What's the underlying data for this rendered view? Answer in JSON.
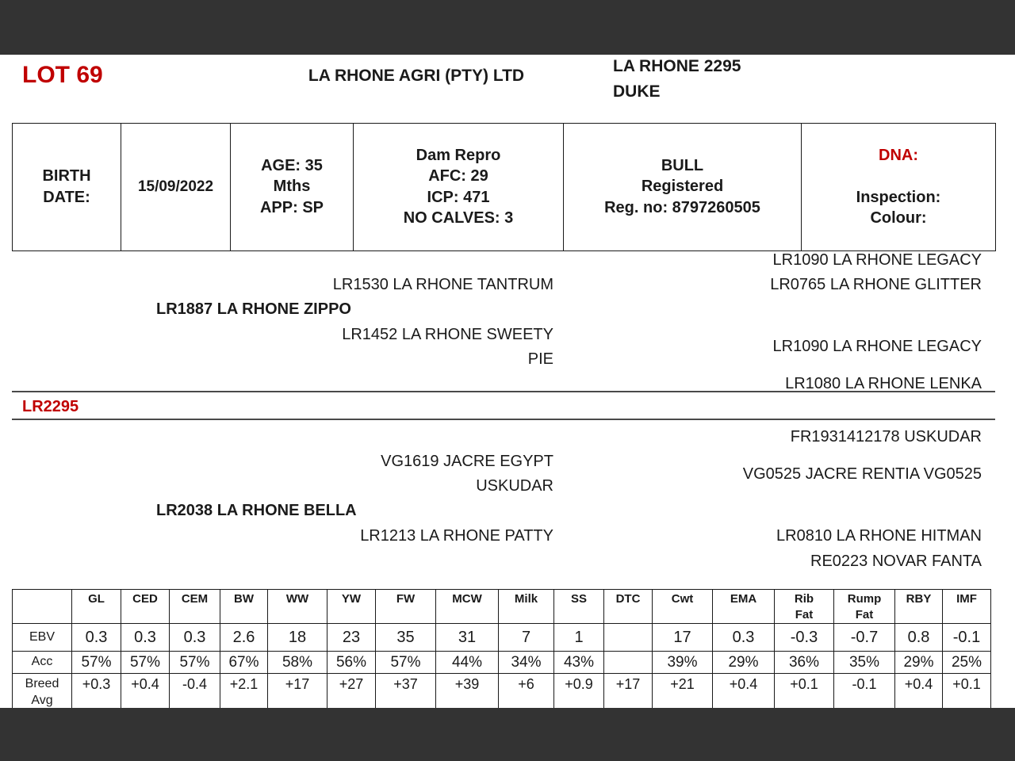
{
  "header": {
    "lot_label": "LOT 69",
    "farm_name": "LA RHONE AGRI (PTY) LTD",
    "animal_name": "LA RHONE 2295\nDUKE"
  },
  "info_table": {
    "birth_date_label": "BIRTH\nDATE:",
    "birth_date_value": "15/09/2022",
    "age_app": "AGE: 35\nMths\nAPP: SP",
    "dam_repro": "Dam Repro\nAFC: 29\nICP: 471\nNO CALVES: 3",
    "registration": "BULL\nRegistered\nReg. no: 8797260505",
    "dna_label": "DNA:",
    "dna_details": "Inspection:\nColour:"
  },
  "pedigree": {
    "animal_id": "LR2295",
    "sire": "LR1887 LA RHONE ZIPPO",
    "dam": "LR2038 LA RHONE BELLA",
    "paternal_grandsire": "LR1530 LA RHONE TANTRUM",
    "paternal_granddam": "LR1452 LA RHONE SWEETY\nPIE",
    "maternal_grandsire": "VG1619 JACRE EGYPT\nUSKUDAR",
    "maternal_granddam": "LR1213 LA RHONE PATTY",
    "pgs_sire": "LR1090 LA RHONE LEGACY",
    "pgs_dam": "LR0765 LA RHONE GLITTER",
    "pgd_sire": "LR1090 LA RHONE LEGACY",
    "pgd_dam": "LR1080 LA RHONE LENKA",
    "mgs_sire": "FR1931412178 USKUDAR",
    "mgs_dam": "VG0525 JACRE RENTIA VG0525",
    "mgd_sire": "LR0810 LA RHONE HITMAN",
    "mgd_dam": "RE0223 NOVAR FANTA"
  },
  "ebv_table": {
    "columns": [
      "",
      "GL",
      "CED",
      "CEM",
      "BW",
      "WW",
      "YW",
      "FW",
      "MCW",
      "Milk",
      "SS",
      "DTC",
      "Cwt",
      "EMA",
      "Rib\nFat",
      "Rump\nFat",
      "RBY",
      "IMF"
    ],
    "rows": [
      {
        "label": "EBV",
        "css": "ebv-row",
        "values": [
          "0.3",
          "0.3",
          "0.3",
          "2.6",
          "18",
          "23",
          "35",
          "31",
          "7",
          "1",
          "",
          "17",
          "0.3",
          "-0.3",
          "-0.7",
          "0.8",
          "-0.1"
        ]
      },
      {
        "label": "Acc",
        "css": "acc-row",
        "values": [
          "57%",
          "57%",
          "57%",
          "67%",
          "58%",
          "56%",
          "57%",
          "44%",
          "34%",
          "43%",
          "",
          "39%",
          "29%",
          "36%",
          "35%",
          "29%",
          "25%"
        ]
      },
      {
        "label": "Breed\nAvg",
        "css": "breed-row",
        "values": [
          "+0.3",
          "+0.4",
          "-0.4",
          "+2.1",
          "+17",
          "+27",
          "+37",
          "+39",
          "+6",
          "+0.9",
          "+17",
          "+21",
          "+0.4",
          "+0.1",
          "-0.1",
          "+0.4",
          "+0.1"
        ]
      }
    ]
  },
  "colors": {
    "accent_red": "#C00000",
    "bar_dark": "#333333"
  }
}
